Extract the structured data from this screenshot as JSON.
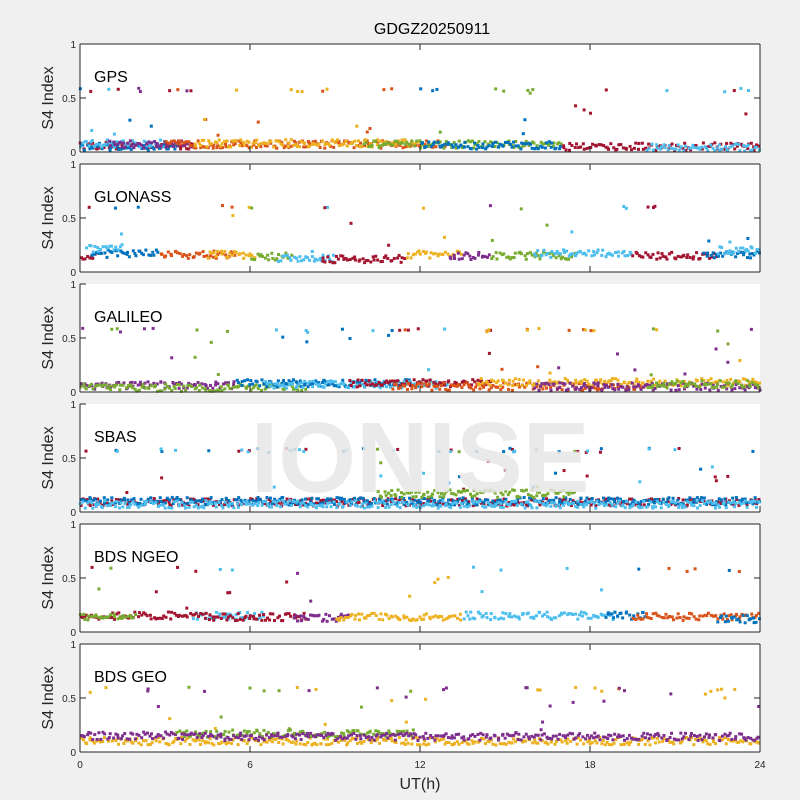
{
  "chart_data": {
    "type": "scatter",
    "title": "GDGZ20250911",
    "xlabel": "UT(h)",
    "ylabel": "S4 Index",
    "xlim": [
      0,
      24
    ],
    "ylim": [
      0,
      1
    ],
    "x_ticks": [
      "0",
      "6",
      "12",
      "18",
      "24"
    ],
    "y_ticks": [
      "0",
      "0.5",
      "1"
    ],
    "watermark": "IONISE",
    "colors": [
      "#0072bd",
      "#d95319",
      "#edb120",
      "#7e2f8e",
      "#77ac30",
      "#4dbeee",
      "#a2142f"
    ],
    "panels": [
      {
        "name": "GPS",
        "boxed": true,
        "baseline_s4": 0.06,
        "outlier_level_s4": 0.57,
        "series": [
          {
            "color_index": 6,
            "x_range": [
              0,
              4.0
            ],
            "level": 0.06
          },
          {
            "color_index": 0,
            "x_range": [
              0,
              3.5
            ],
            "level": 0.05
          },
          {
            "color_index": 5,
            "x_range": [
              0,
              3.0
            ],
            "level": 0.08
          },
          {
            "color_index": 3,
            "x_range": [
              1,
              4.0
            ],
            "level": 0.07
          },
          {
            "color_index": 1,
            "x_range": [
              3,
              13
            ],
            "level": 0.07
          },
          {
            "color_index": 2,
            "x_range": [
              4,
              12
            ],
            "level": 0.08
          },
          {
            "color_index": 4,
            "x_range": [
              10,
              17
            ],
            "level": 0.07
          },
          {
            "color_index": 0,
            "x_range": [
              12,
              17
            ],
            "level": 0.06
          },
          {
            "color_index": 6,
            "x_range": [
              17,
              24
            ],
            "level": 0.05
          },
          {
            "color_index": 5,
            "x_range": [
              20,
              24
            ],
            "level": 0.04
          }
        ]
      },
      {
        "name": "GLONASS",
        "boxed": true,
        "baseline_s4": 0.15,
        "outlier_level_s4": 0.6,
        "series": [
          {
            "color_index": 6,
            "x_range": [
              0,
              0.6
            ],
            "level": 0.14
          },
          {
            "color_index": 0,
            "x_range": [
              0.4,
              2.8
            ],
            "level": 0.17
          },
          {
            "color_index": 5,
            "x_range": [
              0.2,
              1.5
            ],
            "level": 0.22
          },
          {
            "color_index": 1,
            "x_range": [
              2.8,
              5.5
            ],
            "level": 0.16
          },
          {
            "color_index": 2,
            "x_range": [
              4.5,
              6.2
            ],
            "level": 0.16
          },
          {
            "color_index": 4,
            "x_range": [
              6.0,
              7.5
            ],
            "level": 0.14
          },
          {
            "color_index": 5,
            "x_range": [
              7.0,
              9.0
            ],
            "level": 0.13
          },
          {
            "color_index": 6,
            "x_range": [
              8.5,
              11.5
            ],
            "level": 0.12
          },
          {
            "color_index": 2,
            "x_range": [
              11.5,
              13.5
            ],
            "level": 0.16
          },
          {
            "color_index": 3,
            "x_range": [
              13.0,
              14.5
            ],
            "level": 0.15
          },
          {
            "color_index": 4,
            "x_range": [
              14.5,
              17.5
            ],
            "level": 0.15
          },
          {
            "color_index": 5,
            "x_range": [
              16.0,
              19.5
            ],
            "level": 0.17
          },
          {
            "color_index": 6,
            "x_range": [
              19.5,
              22.5
            ],
            "level": 0.15
          },
          {
            "color_index": 0,
            "x_range": [
              22.0,
              24
            ],
            "level": 0.16
          },
          {
            "color_index": 5,
            "x_range": [
              22.5,
              24
            ],
            "level": 0.2
          }
        ]
      },
      {
        "name": "GALILEO",
        "boxed": false,
        "baseline_s4": 0.06,
        "outlier_level_s4": 0.57,
        "series": [
          {
            "color_index": 3,
            "x_range": [
              0,
              5.5
            ],
            "level": 0.06
          },
          {
            "color_index": 4,
            "x_range": [
              0,
              8.0
            ],
            "level": 0.04
          },
          {
            "color_index": 0,
            "x_range": [
              5.5,
              12.0
            ],
            "level": 0.08
          },
          {
            "color_index": 5,
            "x_range": [
              6.5,
              13.0
            ],
            "level": 0.07
          },
          {
            "color_index": 6,
            "x_range": [
              9.5,
              14.5
            ],
            "level": 0.08
          },
          {
            "color_index": 1,
            "x_range": [
              11.0,
              20.0
            ],
            "level": 0.05
          },
          {
            "color_index": 2,
            "x_range": [
              14.0,
              24
            ],
            "level": 0.09
          },
          {
            "color_index": 3,
            "x_range": [
              16.0,
              24
            ],
            "level": 0.05
          },
          {
            "color_index": 4,
            "x_range": [
              20.0,
              24
            ],
            "level": 0.07
          }
        ]
      },
      {
        "name": "SBAS",
        "boxed": false,
        "baseline_s4": 0.09,
        "outlier_level_s4": 0.57,
        "series": [
          {
            "color_index": 6,
            "x_range": [
              0,
              24
            ],
            "level": 0.09
          },
          {
            "color_index": 0,
            "x_range": [
              0,
              24
            ],
            "level": 0.1
          },
          {
            "color_index": 5,
            "x_range": [
              0,
              24
            ],
            "level": 0.07
          },
          {
            "color_index": 4,
            "x_range": [
              10.5,
              17.5
            ],
            "level": 0.17
          }
        ]
      },
      {
        "name": "BDS NGEO",
        "boxed": true,
        "baseline_s4": 0.14,
        "outlier_level_s4": 0.58,
        "series": [
          {
            "color_index": 6,
            "x_range": [
              0,
              4.0
            ],
            "level": 0.15
          },
          {
            "color_index": 4,
            "x_range": [
              0,
              2.0
            ],
            "level": 0.13
          },
          {
            "color_index": 5,
            "x_range": [
              4.0,
              6.5
            ],
            "level": 0.15
          },
          {
            "color_index": 6,
            "x_range": [
              4.0,
              8.0
            ],
            "level": 0.14
          },
          {
            "color_index": 3,
            "x_range": [
              7.5,
              9.5
            ],
            "level": 0.13
          },
          {
            "color_index": 2,
            "x_range": [
              9.0,
              13.5
            ],
            "level": 0.14
          },
          {
            "color_index": 5,
            "x_range": [
              13.5,
              19.0
            ],
            "level": 0.15
          },
          {
            "color_index": 0,
            "x_range": [
              18.5,
              20.0
            ],
            "level": 0.15
          },
          {
            "color_index": 1,
            "x_range": [
              19.5,
              24
            ],
            "level": 0.14
          },
          {
            "color_index": 0,
            "x_range": [
              22.5,
              24
            ],
            "level": 0.12
          }
        ]
      },
      {
        "name": "BDS GEO",
        "boxed": true,
        "baseline_s4": 0.13,
        "outlier_level_s4": 0.58,
        "series": [
          {
            "color_index": 2,
            "x_range": [
              0,
              24
            ],
            "level": 0.1
          },
          {
            "color_index": 3,
            "x_range": [
              0,
              3.4
            ],
            "level": 0.15
          },
          {
            "color_index": 4,
            "x_range": [
              3.4,
              11.8
            ],
            "level": 0.17
          },
          {
            "color_index": 3,
            "x_range": [
              3.4,
              24
            ],
            "level": 0.14
          }
        ]
      }
    ]
  }
}
